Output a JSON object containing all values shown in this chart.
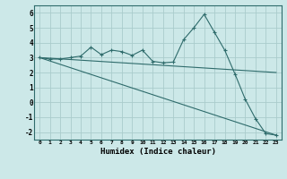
{
  "xlabel": "Humidex (Indice chaleur)",
  "ylabel": "",
  "background_color": "#cce8e8",
  "grid_color": "#aacccc",
  "line_color": "#2e6b6b",
  "xlim": [
    -0.5,
    23.5
  ],
  "ylim": [
    -2.5,
    6.5
  ],
  "yticks": [
    -2,
    -1,
    0,
    1,
    2,
    3,
    4,
    5,
    6
  ],
  "xticks": [
    0,
    1,
    2,
    3,
    4,
    5,
    6,
    7,
    8,
    9,
    10,
    11,
    12,
    13,
    14,
    15,
    16,
    17,
    18,
    19,
    20,
    21,
    22,
    23
  ],
  "series": [
    {
      "x": [
        0,
        1,
        2,
        3,
        4,
        5,
        6,
        7,
        8,
        9,
        10,
        11,
        12,
        13,
        14,
        15,
        16,
        17,
        18,
        19,
        20,
        21,
        22,
        23
      ],
      "y": [
        3.0,
        2.9,
        2.9,
        3.0,
        3.1,
        3.7,
        3.2,
        3.5,
        3.4,
        3.15,
        3.5,
        2.75,
        2.65,
        2.7,
        4.2,
        5.0,
        5.9,
        4.7,
        3.5,
        1.9,
        0.2,
        -1.1,
        -2.1,
        -2.2
      ],
      "marker": "+"
    },
    {
      "x": [
        0,
        23
      ],
      "y": [
        3.0,
        -2.2
      ],
      "marker": null
    },
    {
      "x": [
        0,
        23
      ],
      "y": [
        3.0,
        2.0
      ],
      "marker": null
    }
  ]
}
